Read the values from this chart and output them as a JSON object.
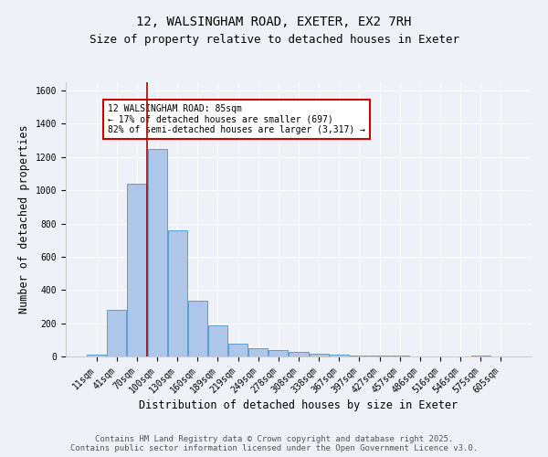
{
  "title_line1": "12, WALSINGHAM ROAD, EXETER, EX2 7RH",
  "title_line2": "Size of property relative to detached houses in Exeter",
  "xlabel": "Distribution of detached houses by size in Exeter",
  "ylabel": "Number of detached properties",
  "bar_labels": [
    "11sqm",
    "41sqm",
    "70sqm",
    "100sqm",
    "130sqm",
    "160sqm",
    "189sqm",
    "219sqm",
    "249sqm",
    "278sqm",
    "308sqm",
    "338sqm",
    "367sqm",
    "397sqm",
    "427sqm",
    "457sqm",
    "486sqm",
    "516sqm",
    "546sqm",
    "575sqm",
    "605sqm"
  ],
  "bar_values": [
    10,
    280,
    1040,
    1250,
    760,
    335,
    185,
    75,
    50,
    38,
    28,
    18,
    10,
    8,
    5,
    8,
    1,
    0,
    0,
    5,
    0
  ],
  "bar_color": "#aec6e8",
  "bar_edge_color": "#5a9fd4",
  "vline_x": 2.5,
  "vline_color": "#aa0000",
  "annotation_text": "12 WALSINGHAM ROAD: 85sqm\n← 17% of detached houses are smaller (697)\n82% of semi-detached houses are larger (3,317) →",
  "annotation_box_color": "#ffffff",
  "annotation_box_edge_color": "#cc0000",
  "ylim": [
    0,
    1650
  ],
  "yticks": [
    0,
    200,
    400,
    600,
    800,
    1000,
    1200,
    1400,
    1600
  ],
  "footer_text": "Contains HM Land Registry data © Crown copyright and database right 2025.\nContains public sector information licensed under the Open Government Licence v3.0.",
  "bg_color": "#eef2f8",
  "plot_bg_color": "#eef2f8",
  "grid_color": "#ffffff",
  "title_fontsize": 10,
  "subtitle_fontsize": 9,
  "axis_label_fontsize": 8.5,
  "tick_fontsize": 7,
  "annotation_fontsize": 7,
  "footer_fontsize": 6.5
}
